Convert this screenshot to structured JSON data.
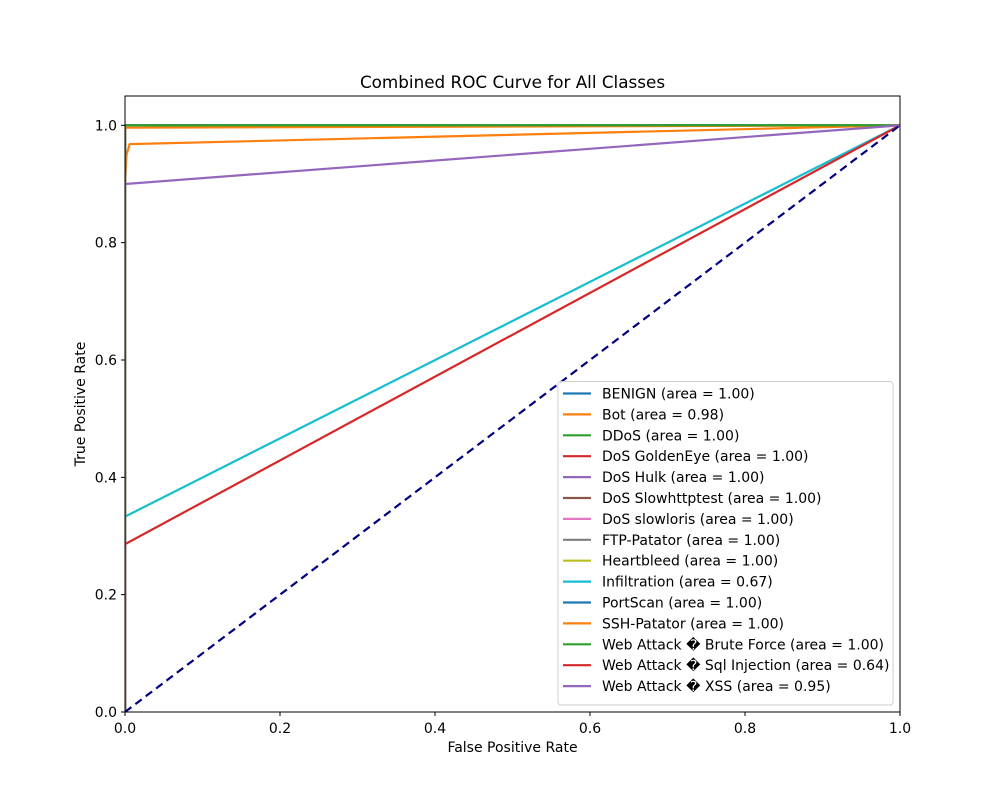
{
  "chart_data": {
    "type": "line",
    "title": "Combined ROC Curve for All Classes",
    "xlabel": "False Positive Rate",
    "ylabel": "True Positive Rate",
    "xlim": [
      0.0,
      1.0
    ],
    "ylim": [
      0.0,
      1.05
    ],
    "xticks": [
      "0.0",
      "0.2",
      "0.4",
      "0.6",
      "0.8",
      "1.0"
    ],
    "yticks": [
      "0.0",
      "0.2",
      "0.4",
      "0.6",
      "0.8",
      "1.0"
    ],
    "legend_position": "lower-right",
    "grid": false,
    "series": [
      {
        "name": "BENIGN (area = 1.00)",
        "color": "#1f77b4",
        "x": [
          0,
          0,
          1
        ],
        "y": [
          0,
          1.0,
          1.0
        ]
      },
      {
        "name": "Bot (area = 0.98)",
        "color": "#ff7f0e",
        "x": [
          0,
          0,
          0.002,
          0.006,
          1
        ],
        "y": [
          0,
          0.9,
          0.95,
          0.968,
          1.0
        ]
      },
      {
        "name": "DDoS (area = 1.00)",
        "color": "#2ca02c",
        "x": [
          0,
          0,
          1
        ],
        "y": [
          0,
          1.0,
          1.0
        ]
      },
      {
        "name": "DoS GoldenEye (area = 1.00)",
        "color": "#d62728",
        "x": [
          0,
          0,
          1
        ],
        "y": [
          0,
          1.0,
          1.0
        ]
      },
      {
        "name": "DoS Hulk (area = 1.00)",
        "color": "#9467bd",
        "x": [
          0,
          0,
          1
        ],
        "y": [
          0,
          1.0,
          1.0
        ]
      },
      {
        "name": "DoS Slowhttptest (area = 1.00)",
        "color": "#8c564b",
        "x": [
          0,
          0,
          1
        ],
        "y": [
          0,
          1.0,
          1.0
        ]
      },
      {
        "name": "DoS slowloris (area = 1.00)",
        "color": "#e377c2",
        "x": [
          0,
          0,
          1
        ],
        "y": [
          0,
          1.0,
          1.0
        ]
      },
      {
        "name": "FTP-Patator (area = 1.00)",
        "color": "#7f7f7f",
        "x": [
          0,
          0,
          1
        ],
        "y": [
          0,
          1.0,
          1.0
        ]
      },
      {
        "name": "Heartbleed (area = 1.00)",
        "color": "#bcbd22",
        "x": [
          0,
          0,
          1
        ],
        "y": [
          0,
          1.0,
          1.0
        ]
      },
      {
        "name": "Infiltration (area = 0.67)",
        "color": "#17becf",
        "x": [
          0,
          0,
          1
        ],
        "y": [
          0,
          0.333,
          1.0
        ]
      },
      {
        "name": "PortScan (area = 1.00)",
        "color": "#1f77b4",
        "x": [
          0,
          0,
          1
        ],
        "y": [
          0,
          1.0,
          1.0
        ]
      },
      {
        "name": "SSH-Patator (area = 1.00)",
        "color": "#ff7f0e",
        "x": [
          0,
          0,
          1
        ],
        "y": [
          0,
          0.996,
          1.0
        ]
      },
      {
        "name": "Web Attack � Brute Force (area = 1.00)",
        "color": "#2ca02c",
        "x": [
          0,
          0,
          1
        ],
        "y": [
          0,
          1.0,
          1.0
        ]
      },
      {
        "name": "Web Attack � Sql Injection (area = 0.64)",
        "color": "#d62728",
        "x": [
          0,
          0,
          1
        ],
        "y": [
          0,
          0.286,
          1.0
        ]
      },
      {
        "name": "Web Attack � XSS (area = 0.95)",
        "color": "#9467bd",
        "x": [
          0,
          0,
          1
        ],
        "y": [
          0,
          0.9,
          1.0
        ]
      }
    ],
    "reference_line": {
      "x": [
        0,
        1
      ],
      "y": [
        0,
        1
      ],
      "color": "#000080",
      "style": "dashed"
    }
  }
}
